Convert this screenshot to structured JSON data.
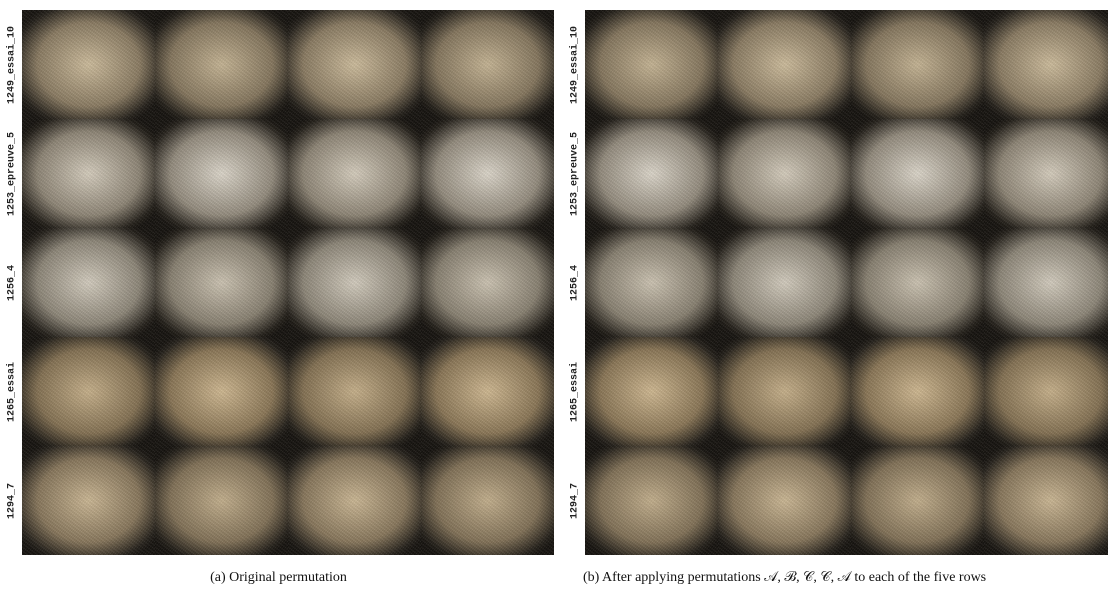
{
  "panels": [
    {
      "row_labels": [
        "1249_essai_10",
        "1253_epreuve_5",
        "1256_4",
        "1265_essai",
        "1294_7"
      ],
      "caption": "(a) Original permutation"
    },
    {
      "row_labels": [
        "1249_essai_10",
        "1253_epreuve_5",
        "1256_4",
        "1265_essai",
        "1294_7"
      ],
      "caption": "(b) After applying permutations 𝒜, ℬ, 𝒞, 𝒞, 𝒜 to each of the five rows"
    }
  ]
}
